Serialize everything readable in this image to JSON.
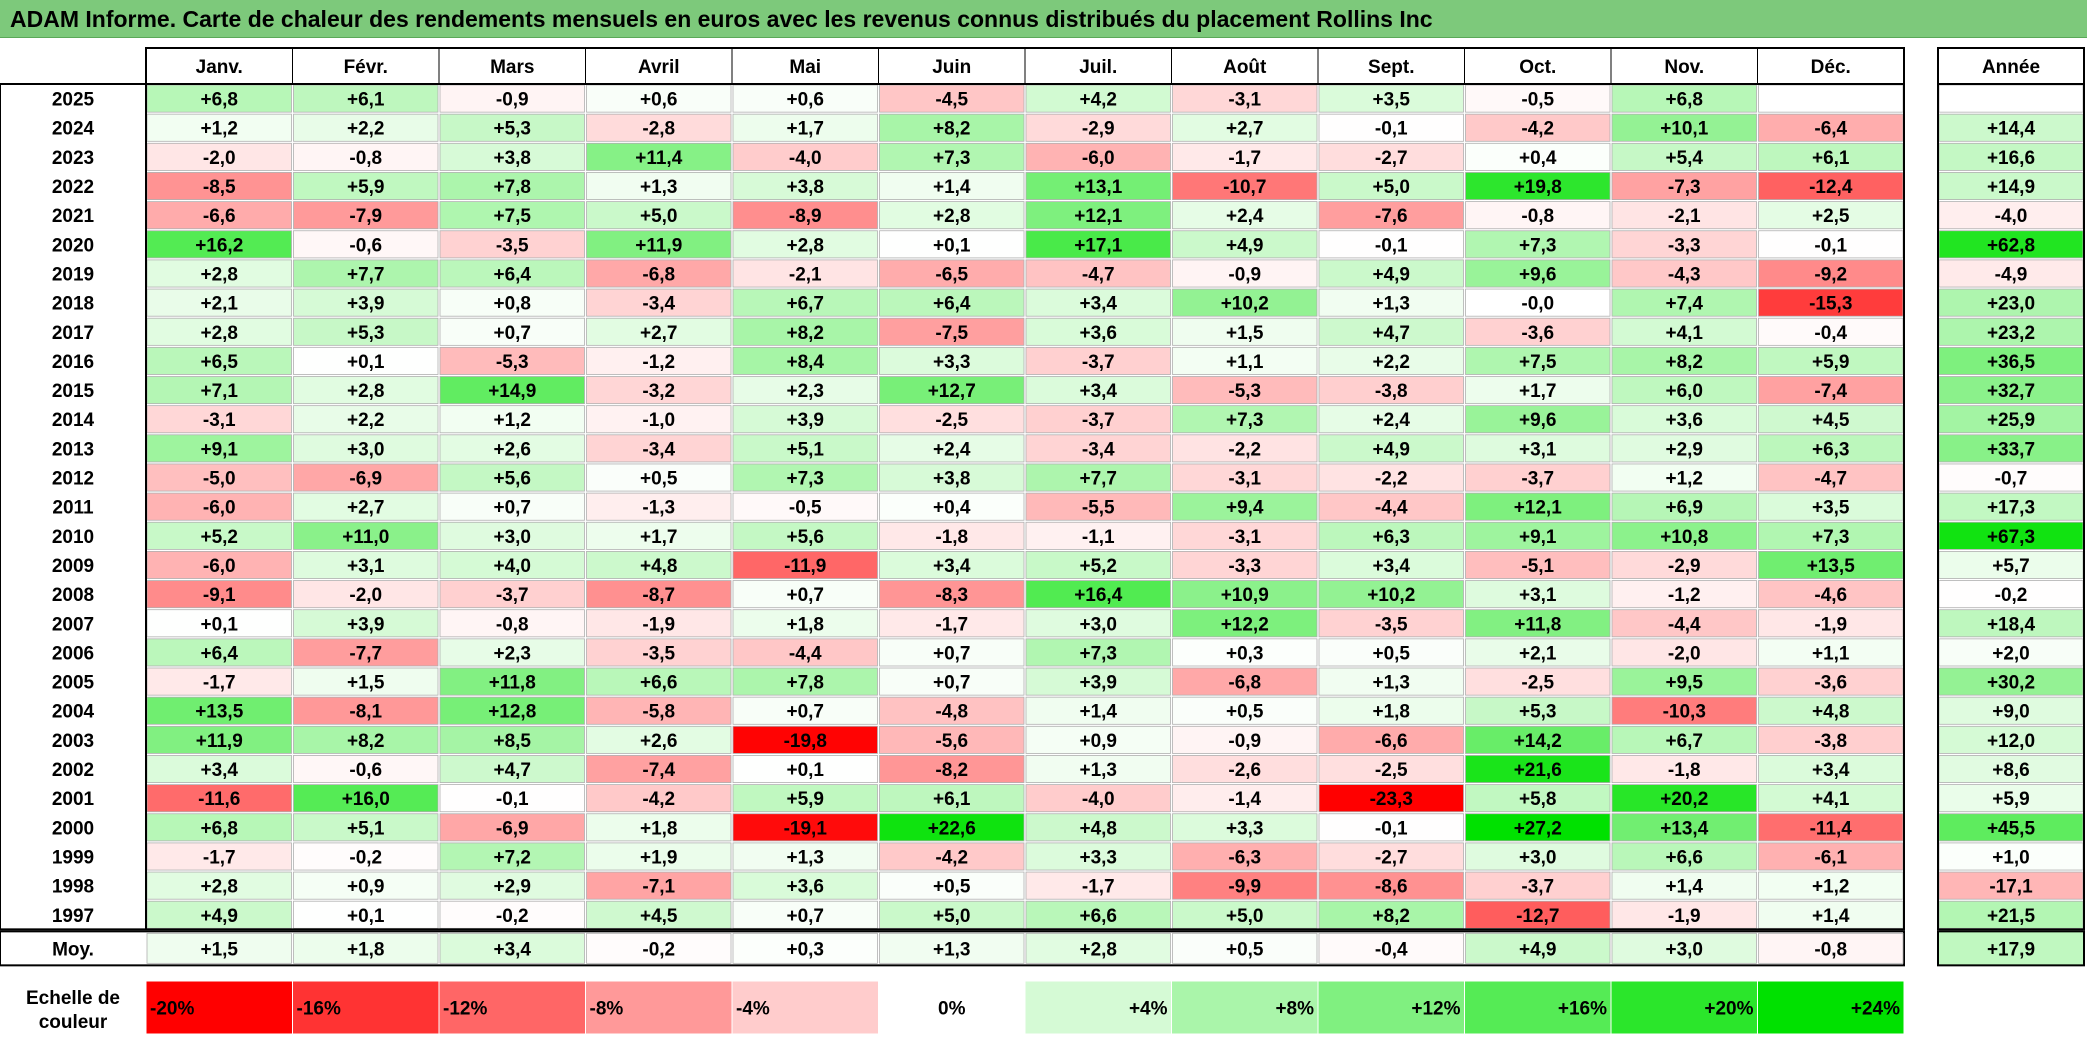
{
  "title": "ADAM Informe. Carte de chaleur des rendements mensuels en euros avec les revenus connus distribués du placement Rollins Inc",
  "chart_data": {
    "type": "heatmap",
    "months": [
      "Janv.",
      "Févr.",
      "Mars",
      "Avril",
      "Mai",
      "Juin",
      "Juil.",
      "Août",
      "Sept.",
      "Oct.",
      "Nov.",
      "Déc."
    ],
    "year_column_label": "Année",
    "average_row_label": "Moy.",
    "rows": [
      {
        "year": "2025",
        "values": [
          "+6,8",
          "+6,1",
          "-0,9",
          "+0,6",
          "+0,6",
          "-4,5",
          "+4,2",
          "-3,1",
          "+3,5",
          "-0,5",
          "+6,8",
          ""
        ],
        "annual": ""
      },
      {
        "year": "2024",
        "values": [
          "+1,2",
          "+2,2",
          "+5,3",
          "-2,8",
          "+1,7",
          "+8,2",
          "-2,9",
          "+2,7",
          "-0,1",
          "-4,2",
          "+10,1",
          "-6,4"
        ],
        "annual": "+14,4"
      },
      {
        "year": "2023",
        "values": [
          "-2,0",
          "-0,8",
          "+3,8",
          "+11,4",
          "-4,0",
          "+7,3",
          "-6,0",
          "-1,7",
          "-2,7",
          "+0,4",
          "+5,4",
          "+6,1"
        ],
        "annual": "+16,6"
      },
      {
        "year": "2022",
        "values": [
          "-8,5",
          "+5,9",
          "+7,8",
          "+1,3",
          "+3,8",
          "+1,4",
          "+13,1",
          "-10,7",
          "+5,0",
          "+19,8",
          "-7,3",
          "-12,4"
        ],
        "annual": "+14,9"
      },
      {
        "year": "2021",
        "values": [
          "-6,6",
          "-7,9",
          "+7,5",
          "+5,0",
          "-8,9",
          "+2,8",
          "+12,1",
          "+2,4",
          "-7,6",
          "-0,8",
          "-2,1",
          "+2,5"
        ],
        "annual": "-4,0"
      },
      {
        "year": "2020",
        "values": [
          "+16,2",
          "-0,6",
          "-3,5",
          "+11,9",
          "+2,8",
          "+0,1",
          "+17,1",
          "+4,9",
          "-0,1",
          "+7,3",
          "-3,3",
          "-0,1"
        ],
        "annual": "+62,8"
      },
      {
        "year": "2019",
        "values": [
          "+2,8",
          "+7,7",
          "+6,4",
          "-6,8",
          "-2,1",
          "-6,5",
          "-4,7",
          "-0,9",
          "+4,9",
          "+9,6",
          "-4,3",
          "-9,2"
        ],
        "annual": "-4,9"
      },
      {
        "year": "2018",
        "values": [
          "+2,1",
          "+3,9",
          "+0,8",
          "-3,4",
          "+6,7",
          "+6,4",
          "+3,4",
          "+10,2",
          "+1,3",
          "-0,0",
          "+7,4",
          "-15,3"
        ],
        "annual": "+23,0"
      },
      {
        "year": "2017",
        "values": [
          "+2,8",
          "+5,3",
          "+0,7",
          "+2,7",
          "+8,2",
          "-7,5",
          "+3,6",
          "+1,5",
          "+4,7",
          "-3,6",
          "+4,1",
          "-0,4"
        ],
        "annual": "+23,2"
      },
      {
        "year": "2016",
        "values": [
          "+6,5",
          "+0,1",
          "-5,3",
          "-1,2",
          "+8,4",
          "+3,3",
          "-3,7",
          "+1,1",
          "+2,2",
          "+7,5",
          "+8,2",
          "+5,9"
        ],
        "annual": "+36,5"
      },
      {
        "year": "2015",
        "values": [
          "+7,1",
          "+2,8",
          "+14,9",
          "-3,2",
          "+2,3",
          "+12,7",
          "+3,4",
          "-5,3",
          "-3,8",
          "+1,7",
          "+6,0",
          "-7,4"
        ],
        "annual": "+32,7"
      },
      {
        "year": "2014",
        "values": [
          "-3,1",
          "+2,2",
          "+1,2",
          "-1,0",
          "+3,9",
          "-2,5",
          "-3,7",
          "+7,3",
          "+2,4",
          "+9,6",
          "+3,6",
          "+4,5"
        ],
        "annual": "+25,9"
      },
      {
        "year": "2013",
        "values": [
          "+9,1",
          "+3,0",
          "+2,6",
          "-3,4",
          "+5,1",
          "+2,4",
          "-3,4",
          "-2,2",
          "+4,9",
          "+3,1",
          "+2,9",
          "+6,3"
        ],
        "annual": "+33,7"
      },
      {
        "year": "2012",
        "values": [
          "-5,0",
          "-6,9",
          "+5,6",
          "+0,5",
          "+7,3",
          "+3,8",
          "+7,7",
          "-3,1",
          "-2,2",
          "-3,7",
          "+1,2",
          "-4,7"
        ],
        "annual": "-0,7"
      },
      {
        "year": "2011",
        "values": [
          "-6,0",
          "+2,7",
          "+0,7",
          "-1,3",
          "-0,5",
          "+0,4",
          "-5,5",
          "+9,4",
          "-4,4",
          "+12,1",
          "+6,9",
          "+3,5"
        ],
        "annual": "+17,3"
      },
      {
        "year": "2010",
        "values": [
          "+5,2",
          "+11,0",
          "+3,0",
          "+1,7",
          "+5,6",
          "-1,8",
          "-1,1",
          "-3,1",
          "+6,3",
          "+9,1",
          "+10,8",
          "+7,3"
        ],
        "annual": "+67,3"
      },
      {
        "year": "2009",
        "values": [
          "-6,0",
          "+3,1",
          "+4,0",
          "+4,8",
          "-11,9",
          "+3,4",
          "+5,2",
          "-3,3",
          "+3,4",
          "-5,1",
          "-2,9",
          "+13,5"
        ],
        "annual": "+5,7"
      },
      {
        "year": "2008",
        "values": [
          "-9,1",
          "-2,0",
          "-3,7",
          "-8,7",
          "+0,7",
          "-8,3",
          "+16,4",
          "+10,9",
          "+10,2",
          "+3,1",
          "-1,2",
          "-4,6"
        ],
        "annual": "-0,2"
      },
      {
        "year": "2007",
        "values": [
          "+0,1",
          "+3,9",
          "-0,8",
          "-1,9",
          "+1,8",
          "-1,7",
          "+3,0",
          "+12,2",
          "-3,5",
          "+11,8",
          "-4,4",
          "-1,9"
        ],
        "annual": "+18,4"
      },
      {
        "year": "2006",
        "values": [
          "+6,4",
          "-7,7",
          "+2,3",
          "-3,5",
          "-4,4",
          "+0,7",
          "+7,3",
          "+0,3",
          "+0,5",
          "+2,1",
          "-2,0",
          "+1,1"
        ],
        "annual": "+2,0"
      },
      {
        "year": "2005",
        "values": [
          "-1,7",
          "+1,5",
          "+11,8",
          "+6,6",
          "+7,8",
          "+0,7",
          "+3,9",
          "-6,8",
          "+1,3",
          "-2,5",
          "+9,5",
          "-3,6"
        ],
        "annual": "+30,2"
      },
      {
        "year": "2004",
        "values": [
          "+13,5",
          "-8,1",
          "+12,8",
          "-5,8",
          "+0,7",
          "-4,8",
          "+1,4",
          "+0,5",
          "+1,8",
          "+5,3",
          "-10,3",
          "+4,8"
        ],
        "annual": "+9,0"
      },
      {
        "year": "2003",
        "values": [
          "+11,9",
          "+8,2",
          "+8,5",
          "+2,6",
          "-19,8",
          "-5,6",
          "+0,9",
          "-0,9",
          "-6,6",
          "+14,2",
          "+6,7",
          "-3,8"
        ],
        "annual": "+12,0"
      },
      {
        "year": "2002",
        "values": [
          "+3,4",
          "-0,6",
          "+4,7",
          "-7,4",
          "+0,1",
          "-8,2",
          "+1,3",
          "-2,6",
          "-2,5",
          "+21,6",
          "-1,8",
          "+3,4"
        ],
        "annual": "+8,6"
      },
      {
        "year": "2001",
        "values": [
          "-11,6",
          "+16,0",
          "-0,1",
          "-4,2",
          "+5,9",
          "+6,1",
          "-4,0",
          "-1,4",
          "-23,3",
          "+5,8",
          "+20,2",
          "+4,1"
        ],
        "annual": "+5,9"
      },
      {
        "year": "2000",
        "values": [
          "+6,8",
          "+5,1",
          "-6,9",
          "+1,8",
          "-19,1",
          "+22,6",
          "+4,8",
          "+3,3",
          "-0,1",
          "+27,2",
          "+13,4",
          "-11,4"
        ],
        "annual": "+45,5"
      },
      {
        "year": "1999",
        "values": [
          "-1,7",
          "-0,2",
          "+7,2",
          "+1,9",
          "+1,3",
          "-4,2",
          "+3,3",
          "-6,3",
          "-2,7",
          "+3,0",
          "+6,6",
          "-6,1"
        ],
        "annual": "+1,0"
      },
      {
        "year": "1998",
        "values": [
          "+2,8",
          "+0,9",
          "+2,9",
          "-7,1",
          "+3,6",
          "+0,5",
          "-1,7",
          "-9,9",
          "-8,6",
          "-3,7",
          "+1,4",
          "+1,2"
        ],
        "annual": "-17,1"
      },
      {
        "year": "1997",
        "values": [
          "+4,9",
          "+0,1",
          "-0,2",
          "+4,5",
          "+0,7",
          "+5,0",
          "+6,6",
          "+5,0",
          "+8,2",
          "-12,7",
          "-1,9",
          "+1,4"
        ],
        "annual": "+21,5"
      }
    ],
    "average": {
      "values": [
        "+1,5",
        "+1,8",
        "+3,4",
        "-0,2",
        "+0,3",
        "+1,3",
        "+2,8",
        "+0,5",
        "-0,4",
        "+4,9",
        "+3,0",
        "-0,8"
      ],
      "annual": "+17,9"
    },
    "scale": {
      "label_line1": "Echelle de",
      "label_line2": "couleur",
      "steps": [
        {
          "label": "-20%",
          "value": -20
        },
        {
          "label": "-16%",
          "value": -16
        },
        {
          "label": "-12%",
          "value": -12
        },
        {
          "label": "-8%",
          "value": -8
        },
        {
          "label": "-4%",
          "value": -4
        },
        {
          "label": "0%",
          "value": 0
        },
        {
          "label": "+4%",
          "value": 4
        },
        {
          "label": "+8%",
          "value": 8
        },
        {
          "label": "+12%",
          "value": 12
        },
        {
          "label": "+16%",
          "value": 16
        },
        {
          "label": "+20%",
          "value": 20
        },
        {
          "label": "+24%",
          "value": 24
        }
      ]
    },
    "colors": {
      "negative": "#ff0000",
      "neutral": "#ffffff",
      "positive": "#00e000",
      "title_bar": "#7dc97b"
    }
  }
}
